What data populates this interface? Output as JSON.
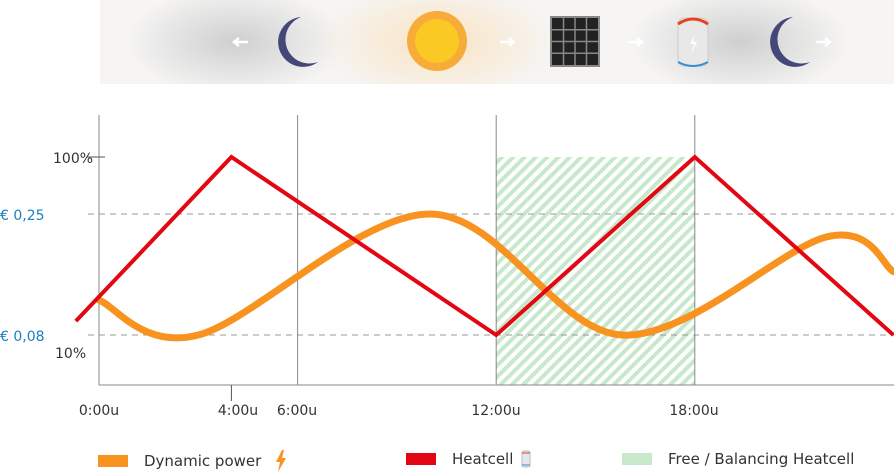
{
  "banner": {
    "icons": [
      "arrow-left-icon",
      "moon-icon",
      "sun-icon",
      "arrow-right-icon",
      "solar-panel-icon",
      "arrow-right-icon",
      "heatcell-battery-icon",
      "moon-icon",
      "arrow-right-icon"
    ]
  },
  "chart_data": {
    "type": "line",
    "title": "",
    "xlabel": "",
    "ylabel": "",
    "x_ticks": [
      "0:00u",
      "4:00u",
      "6:00u",
      "12:00u",
      "18:00u"
    ],
    "x_tick_hours": [
      0,
      4,
      6,
      12,
      18
    ],
    "xlim": [
      0,
      24
    ],
    "y_ticks_left": [
      "100%",
      "10%"
    ],
    "y_ticks_price": [
      "€ 0,25",
      "€ 0,08"
    ],
    "price_levels": [
      0.25,
      0.08
    ],
    "series": [
      {
        "name": "Dynamic power",
        "unit": "€",
        "color": "#f7931e",
        "points": [
          [
            0,
            0.129
          ],
          [
            3,
            0.08
          ],
          [
            10,
            0.25
          ],
          [
            15.8,
            0.08
          ],
          [
            22,
            0.218
          ],
          [
            24,
            0.169
          ]
        ]
      },
      {
        "name": "Heatcell",
        "unit": "%",
        "color": "#e30613",
        "points": [
          [
            -0.7,
            17
          ],
          [
            4,
            100
          ],
          [
            12,
            10
          ],
          [
            18,
            100
          ],
          [
            24,
            10
          ]
        ]
      }
    ],
    "shaded_region": {
      "name": "Free / Balancing Heatcell",
      "from_hour": 12,
      "to_hour": 18,
      "top_percent": 100,
      "color": "#c8e8cc"
    },
    "legend_position": "bottom",
    "grid": "vertical lines at 6:00u, 12:00u, 18:00u; dashed at price levels"
  },
  "legend": [
    {
      "label": "Dynamic power",
      "color": "#f7931e",
      "icon": "lightning-icon"
    },
    {
      "label": "Heatcell",
      "color": "#e30613",
      "icon": "heatcell-battery-icon"
    },
    {
      "label": "Free / Balancing Heatcell",
      "color": "#c8e8cc"
    }
  ]
}
